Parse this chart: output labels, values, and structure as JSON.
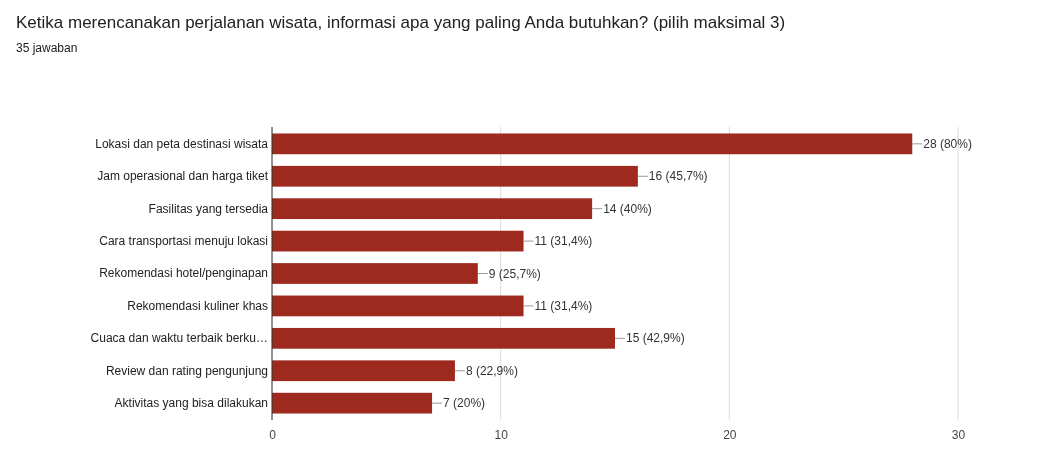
{
  "chart_data": {
    "type": "bar",
    "orientation": "horizontal",
    "title": "Ketika merencanakan perjalanan wisata, informasi apa yang paling Anda butuhkan? (pilih maksimal 3)",
    "subtitle": "35 jawaban",
    "categories": [
      "Lokasi dan peta destinasi wisata",
      "Jam operasional dan harga tiket",
      "Fasilitas yang tersedia",
      "Cara transportasi menuju lokasi",
      "Rekomendasi hotel/penginapan",
      "Rekomendasi kuliner khas",
      "Cuaca dan waktu terbaik berku…",
      "Review dan rating pengunjung",
      "Aktivitas yang bisa dilakukan"
    ],
    "values": [
      28,
      16,
      14,
      11,
      9,
      11,
      15,
      8,
      7
    ],
    "value_labels": [
      "28 (80%)",
      "16 (45,7%)",
      "14 (40%)",
      "11 (31,4%)",
      "9 (25,7%)",
      "11 (31,4%)",
      "15 (42,9%)",
      "8 (22,9%)",
      "7 (20%)"
    ],
    "color": "#9e2a1f",
    "xlim": [
      0,
      30
    ],
    "xticks": [
      0,
      10,
      20,
      30
    ],
    "grid": "x"
  }
}
